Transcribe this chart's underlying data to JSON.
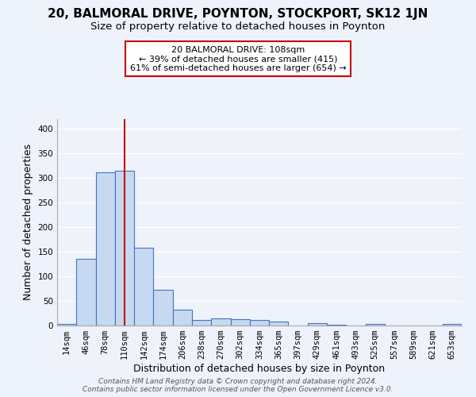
{
  "title": "20, BALMORAL DRIVE, POYNTON, STOCKPORT, SK12 1JN",
  "subtitle": "Size of property relative to detached houses in Poynton",
  "xlabel": "Distribution of detached houses by size in Poynton",
  "ylabel": "Number of detached properties",
  "categories": [
    "14sqm",
    "46sqm",
    "78sqm",
    "110sqm",
    "142sqm",
    "174sqm",
    "206sqm",
    "238sqm",
    "270sqm",
    "302sqm",
    "334sqm",
    "365sqm",
    "397sqm",
    "429sqm",
    "461sqm",
    "493sqm",
    "525sqm",
    "557sqm",
    "589sqm",
    "621sqm",
    "653sqm"
  ],
  "values": [
    4,
    136,
    312,
    315,
    158,
    72,
    33,
    11,
    15,
    13,
    11,
    8,
    0,
    5,
    2,
    0,
    3,
    0,
    0,
    0,
    3
  ],
  "bar_color": "#c6d9f0",
  "bar_edge_color": "#4472c4",
  "vline_x": 3,
  "vline_color": "#cc0000",
  "annotation_line1": "20 BALMORAL DRIVE: 108sqm",
  "annotation_line2": "← 39% of detached houses are smaller (415)",
  "annotation_line3": "61% of semi-detached houses are larger (654) →",
  "annotation_box_color": "#ffffff",
  "annotation_box_edge": "#cc0000",
  "ylim": [
    0,
    420
  ],
  "yticks": [
    0,
    50,
    100,
    150,
    200,
    250,
    300,
    350,
    400
  ],
  "footer": "Contains HM Land Registry data © Crown copyright and database right 2024.\nContains public sector information licensed under the Open Government Licence v3.0.",
  "background_color": "#eef2fb",
  "grid_color": "#ffffff",
  "title_fontsize": 11,
  "subtitle_fontsize": 9.5,
  "axis_label_fontsize": 9,
  "tick_fontsize": 7.5,
  "footer_fontsize": 6.5
}
